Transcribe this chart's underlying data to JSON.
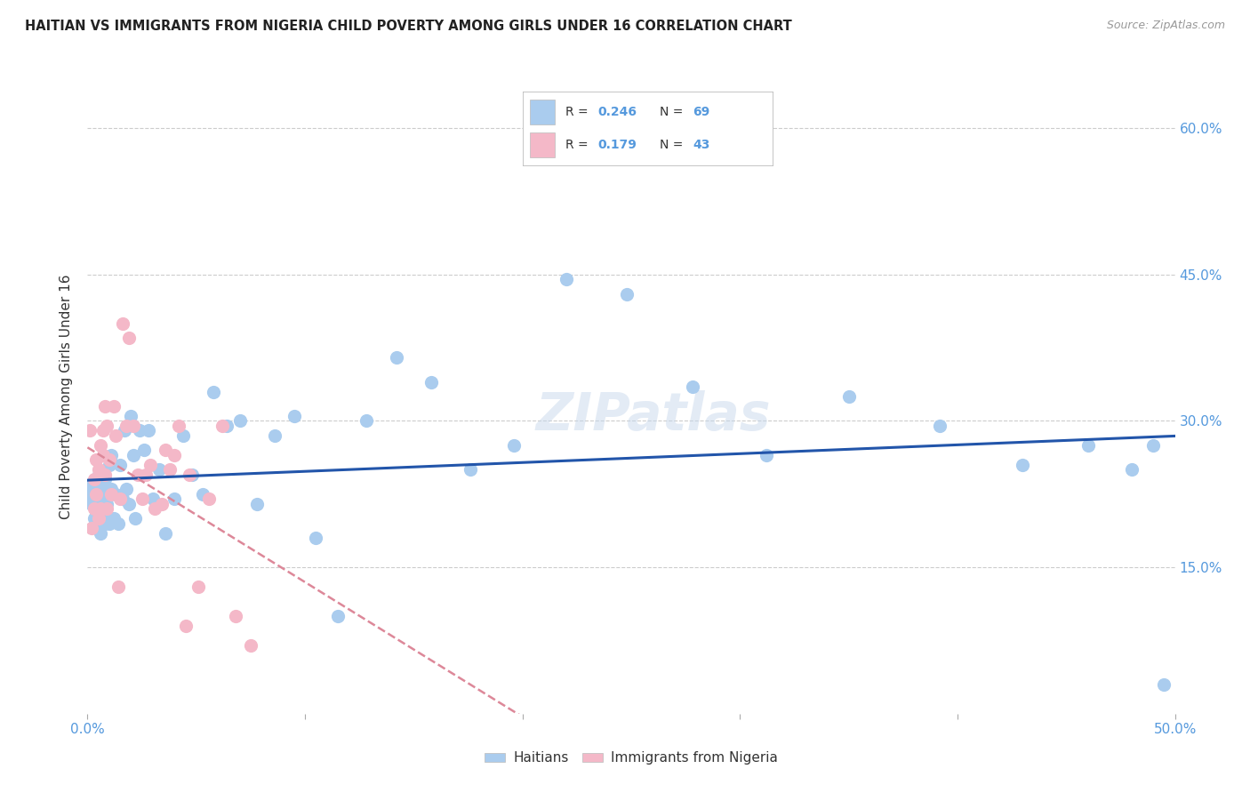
{
  "title": "HAITIAN VS IMMIGRANTS FROM NIGERIA CHILD POVERTY AMONG GIRLS UNDER 16 CORRELATION CHART",
  "source": "Source: ZipAtlas.com",
  "ylabel": "Child Poverty Among Girls Under 16",
  "xlim": [
    0.0,
    0.5
  ],
  "ylim": [
    0.0,
    0.65
  ],
  "xtick_vals": [
    0.0,
    0.1,
    0.2,
    0.3,
    0.4,
    0.5
  ],
  "xtick_labels": [
    "0.0%",
    "",
    "",
    "",
    "",
    "50.0%"
  ],
  "ytick_vals": [
    0.15,
    0.3,
    0.45,
    0.6
  ],
  "ytick_labels": [
    "15.0%",
    "30.0%",
    "45.0%",
    "60.0%"
  ],
  "legend_labels": [
    "Haitians",
    "Immigrants from Nigeria"
  ],
  "r_haiti": 0.246,
  "n_haiti": 69,
  "r_nigeria": 0.179,
  "n_nigeria": 43,
  "haiti_color": "#aaccee",
  "nigeria_color": "#f4b8c8",
  "haiti_line_color": "#2255aa",
  "nigeria_line_color": "#dd8899",
  "watermark": "ZIPatlas",
  "tick_color": "#5599dd",
  "haiti_x": [
    0.001,
    0.002,
    0.002,
    0.003,
    0.003,
    0.004,
    0.004,
    0.005,
    0.005,
    0.005,
    0.006,
    0.006,
    0.006,
    0.007,
    0.007,
    0.007,
    0.008,
    0.008,
    0.009,
    0.009,
    0.01,
    0.01,
    0.011,
    0.011,
    0.012,
    0.013,
    0.014,
    0.015,
    0.016,
    0.017,
    0.018,
    0.019,
    0.02,
    0.021,
    0.022,
    0.024,
    0.026,
    0.028,
    0.03,
    0.033,
    0.036,
    0.04,
    0.044,
    0.048,
    0.053,
    0.058,
    0.064,
    0.07,
    0.078,
    0.086,
    0.095,
    0.105,
    0.115,
    0.128,
    0.142,
    0.158,
    0.176,
    0.196,
    0.22,
    0.248,
    0.278,
    0.312,
    0.35,
    0.392,
    0.43,
    0.46,
    0.48,
    0.49,
    0.495
  ],
  "haiti_y": [
    0.225,
    0.235,
    0.215,
    0.22,
    0.2,
    0.23,
    0.21,
    0.195,
    0.22,
    0.245,
    0.21,
    0.225,
    0.185,
    0.23,
    0.215,
    0.2,
    0.24,
    0.195,
    0.225,
    0.215,
    0.255,
    0.195,
    0.23,
    0.265,
    0.2,
    0.225,
    0.195,
    0.255,
    0.22,
    0.29,
    0.23,
    0.215,
    0.305,
    0.265,
    0.2,
    0.29,
    0.27,
    0.29,
    0.22,
    0.25,
    0.185,
    0.22,
    0.285,
    0.245,
    0.225,
    0.33,
    0.295,
    0.3,
    0.215,
    0.285,
    0.305,
    0.18,
    0.1,
    0.3,
    0.365,
    0.34,
    0.25,
    0.275,
    0.445,
    0.43,
    0.335,
    0.265,
    0.325,
    0.295,
    0.255,
    0.275,
    0.25,
    0.275,
    0.03
  ],
  "nigeria_x": [
    0.001,
    0.002,
    0.003,
    0.003,
    0.004,
    0.004,
    0.005,
    0.005,
    0.006,
    0.006,
    0.007,
    0.007,
    0.008,
    0.008,
    0.009,
    0.009,
    0.01,
    0.011,
    0.012,
    0.013,
    0.014,
    0.015,
    0.016,
    0.018,
    0.019,
    0.021,
    0.023,
    0.025,
    0.027,
    0.029,
    0.031,
    0.034,
    0.036,
    0.038,
    0.04,
    0.042,
    0.045,
    0.047,
    0.051,
    0.056,
    0.062,
    0.068,
    0.075
  ],
  "nigeria_y": [
    0.29,
    0.19,
    0.24,
    0.21,
    0.26,
    0.225,
    0.2,
    0.25,
    0.275,
    0.21,
    0.29,
    0.265,
    0.245,
    0.315,
    0.21,
    0.295,
    0.26,
    0.225,
    0.315,
    0.285,
    0.13,
    0.22,
    0.4,
    0.295,
    0.385,
    0.295,
    0.245,
    0.22,
    0.245,
    0.255,
    0.21,
    0.215,
    0.27,
    0.25,
    0.265,
    0.295,
    0.09,
    0.245,
    0.13,
    0.22,
    0.295,
    0.1,
    0.07
  ]
}
